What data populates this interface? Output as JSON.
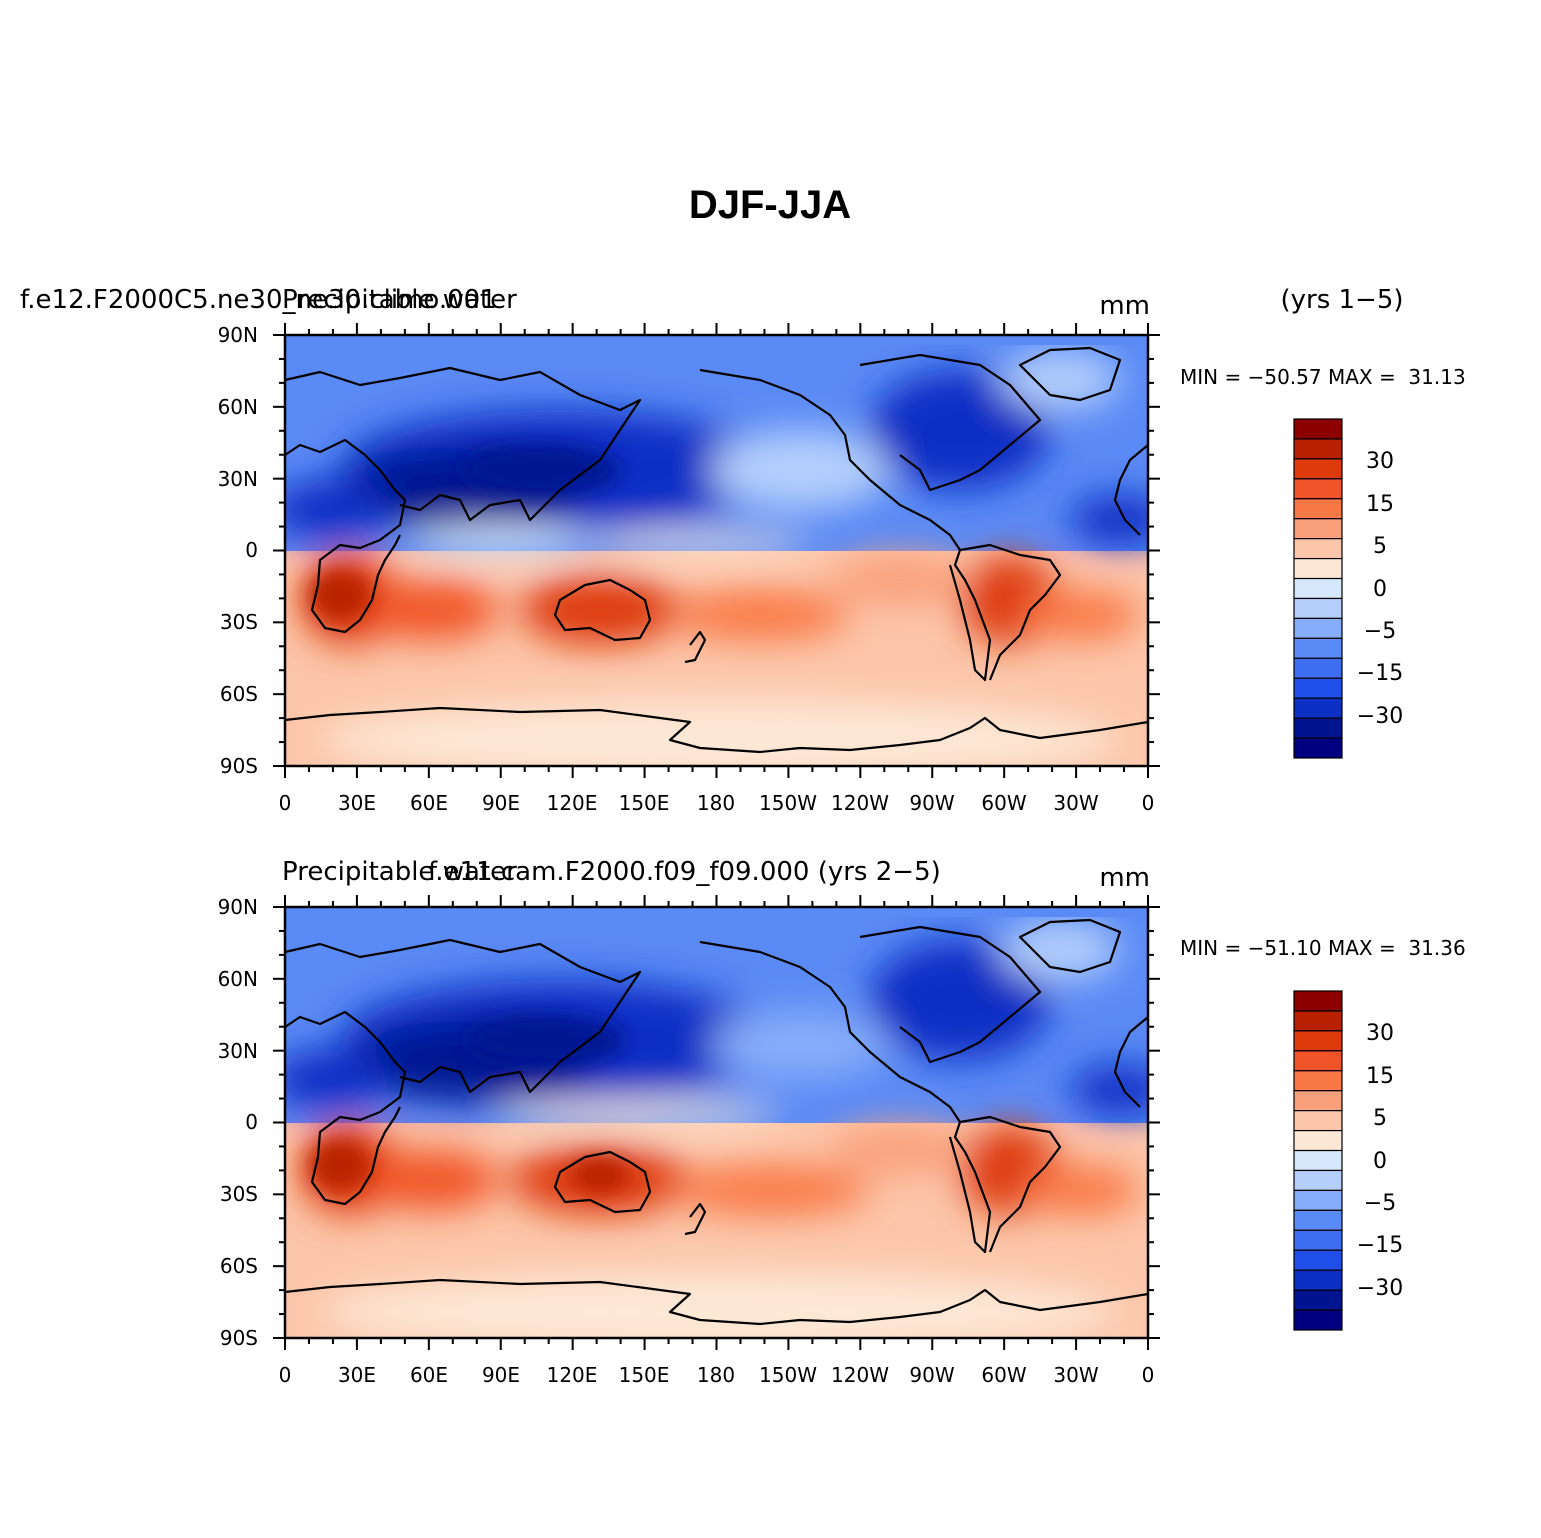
{
  "page_title": "DJF-JJA",
  "chart_data": [
    {
      "type": "heatmap",
      "left_title": "f.e12.F2000C5.ne30_ne30.climo.001",
      "center_title": "Precipitable water",
      "right_title": "mm",
      "years": "(yrs 1−5)",
      "min_max": "MIN = −50.57 MAX =  31.13",
      "min": -50.57,
      "max": 31.13,
      "x_ticks": [
        "0",
        "30E",
        "60E",
        "90E",
        "120E",
        "150E",
        "180",
        "150W",
        "120W",
        "90W",
        "60W",
        "30W",
        "0"
      ],
      "y_ticks": [
        "90N",
        "60N",
        "30N",
        "0",
        "30S",
        "60S",
        "90S"
      ],
      "xlim": [
        0,
        360
      ],
      "ylim": [
        -90,
        90
      ],
      "colorbar_labels": [
        "30",
        "15",
        "5",
        "0",
        "−5",
        "−15",
        "−30"
      ]
    },
    {
      "type": "heatmap",
      "left_title": "Precipitable water",
      "center_title": "f.e11.cam.F2000.f09_f09.000 (yrs 2−5)",
      "right_title": "mm",
      "years": "",
      "min_max": "MIN = −51.10 MAX =  31.36",
      "min": -51.1,
      "max": 31.36,
      "x_ticks": [
        "0",
        "30E",
        "60E",
        "90E",
        "120E",
        "150E",
        "180",
        "150W",
        "120W",
        "90W",
        "60W",
        "30W",
        "0"
      ],
      "y_ticks": [
        "90N",
        "60N",
        "30N",
        "0",
        "30S",
        "60S",
        "90S"
      ],
      "xlim": [
        0,
        360
      ],
      "ylim": [
        -90,
        90
      ],
      "colorbar_labels": [
        "30",
        "15",
        "5",
        "0",
        "−5",
        "−15",
        "−30"
      ]
    }
  ],
  "colorbar_colors": [
    "#8c0000",
    "#b82000",
    "#de3a0c",
    "#f15428",
    "#f97845",
    "#f9a07a",
    "#fcc6aa",
    "#fde8d6",
    "#d6e8fc",
    "#b4cffc",
    "#86adfa",
    "#5a8af5",
    "#3d6ef2",
    "#1f4fe8",
    "#0c2fc4",
    "#001490",
    "#000080"
  ],
  "land_color": "#000000"
}
